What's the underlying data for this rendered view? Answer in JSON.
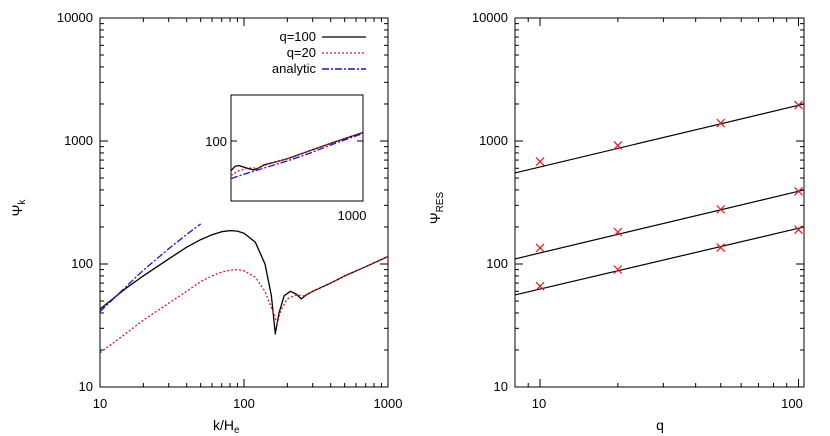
{
  "charts": [
    {
      "type": "line",
      "xlabel": "k/H_e",
      "ylabel": "Ψ_k",
      "xscale": "log",
      "yscale": "log",
      "xlim": [
        10,
        1000
      ],
      "ylim": [
        10,
        10000
      ],
      "xticks": [
        "10",
        "100",
        "1000"
      ],
      "yticks": [
        "10",
        "100",
        "1000",
        "10000"
      ],
      "legend_position": "top-right",
      "series": [
        {
          "name": "q=100",
          "color": "#000000",
          "style": "solid",
          "x": [
            10,
            15,
            20,
            30,
            40,
            50,
            60,
            70,
            80,
            90,
            100,
            120,
            140,
            155,
            165,
            175,
            190,
            210,
            230,
            250,
            270,
            300,
            400,
            500,
            700,
            1000
          ],
          "y": [
            43,
            63,
            80,
            110,
            137,
            158,
            173,
            183,
            187,
            185,
            178,
            150,
            100,
            55,
            27,
            40,
            55,
            60,
            57,
            52,
            56,
            60,
            70,
            80,
            95,
            115
          ]
        },
        {
          "name": "q=20",
          "color": "#e8141b",
          "style": "dotted",
          "x": [
            10,
            15,
            20,
            30,
            40,
            50,
            60,
            70,
            80,
            90,
            100,
            120,
            140,
            160,
            170,
            180,
            200,
            230,
            260,
            300,
            400,
            500,
            700,
            1000
          ],
          "y": [
            19,
            27,
            35,
            48,
            60,
            72,
            80,
            86,
            89,
            90,
            88,
            78,
            60,
            40,
            33,
            42,
            52,
            56,
            55,
            60,
            70,
            80,
            95,
            115
          ]
        },
        {
          "name": "analytic",
          "color": "#1414d2",
          "style": "dashdot",
          "x": [
            10,
            20,
            30,
            40,
            50
          ],
          "y": [
            41,
            89,
            133,
            174,
            212
          ]
        }
      ],
      "inset": {
        "xscale": "log",
        "yscale": "log",
        "xlim": [
          200,
          1000
        ],
        "ylim": [
          30,
          250
        ],
        "xticks": [
          "1000"
        ],
        "yticks": [
          "100"
        ],
        "series": [
          {
            "name": "q=100",
            "x": [
              200,
              210,
              220,
              235,
              250,
              265,
              280,
              300,
              350,
              400,
              500,
              700,
              1000
            ],
            "y": [
              55,
              60,
              61,
              59,
              57,
              56,
              58,
              62,
              66,
              70,
              80,
              97,
              118
            ]
          },
          {
            "name": "q=20",
            "x": [
              200,
              220,
              250,
              280,
              300,
              350,
              400,
              500,
              700,
              1000
            ],
            "y": [
              50,
              55,
              58,
              58,
              61,
              66,
              70,
              80,
              97,
              118
            ]
          },
          {
            "name": "analytic",
            "x": [
              200,
              250,
              300,
              400,
              500,
              700,
              1000
            ],
            "y": [
              47,
              53,
              58,
              67,
              76,
              94,
              116
            ]
          }
        ]
      }
    },
    {
      "type": "scatter",
      "xlabel": "q",
      "ylabel": "Ψ_RES",
      "xscale": "log",
      "yscale": "log",
      "xlim": [
        8,
        105
      ],
      "ylim": [
        10,
        10000
      ],
      "xticks": [
        "10",
        "100"
      ],
      "yticks": [
        "10",
        "100",
        "1000",
        "10000"
      ],
      "markers": {
        "color": "#e8141b",
        "symbol": "x",
        "x": [
          10,
          20,
          50,
          100,
          10,
          20,
          50,
          100,
          10,
          20,
          50,
          100
        ],
        "y": [
          680,
          920,
          1400,
          1960,
          135,
          182,
          278,
          390,
          66,
          90,
          136,
          190
        ]
      },
      "fit_lines": [
        {
          "x": [
            8,
            105
          ],
          "y": [
            550,
            2000
          ]
        },
        {
          "x": [
            8,
            105
          ],
          "y": [
            110,
            400
          ]
        },
        {
          "x": [
            8,
            105
          ],
          "y": [
            56,
            200
          ]
        }
      ]
    }
  ]
}
